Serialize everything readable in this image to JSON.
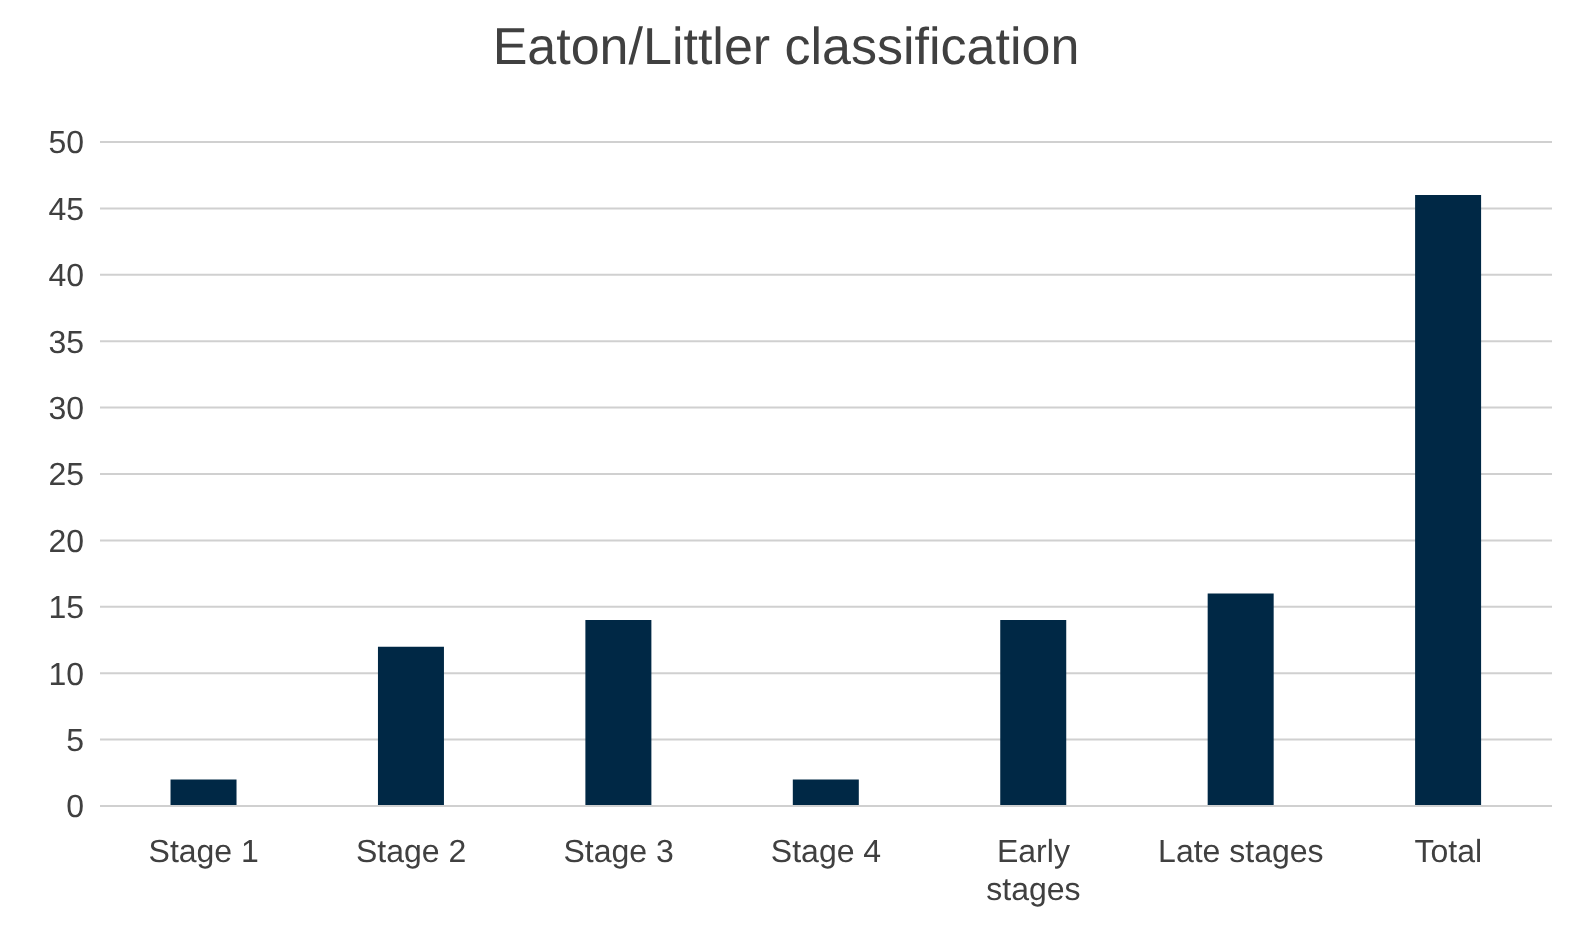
{
  "chart_data": {
    "type": "bar",
    "title": "Eaton/Littler classification",
    "categories": [
      "Stage 1",
      "Stage 2",
      "Stage 3",
      "Stage 4",
      "Early stages",
      "Late stages",
      "Total"
    ],
    "values": [
      2,
      12,
      14,
      2,
      14,
      16,
      46
    ],
    "color": "#002845",
    "ylim": [
      0,
      50
    ],
    "yticks": [
      0,
      5,
      10,
      15,
      20,
      25,
      30,
      35,
      40,
      45,
      50
    ],
    "grid": "y"
  }
}
